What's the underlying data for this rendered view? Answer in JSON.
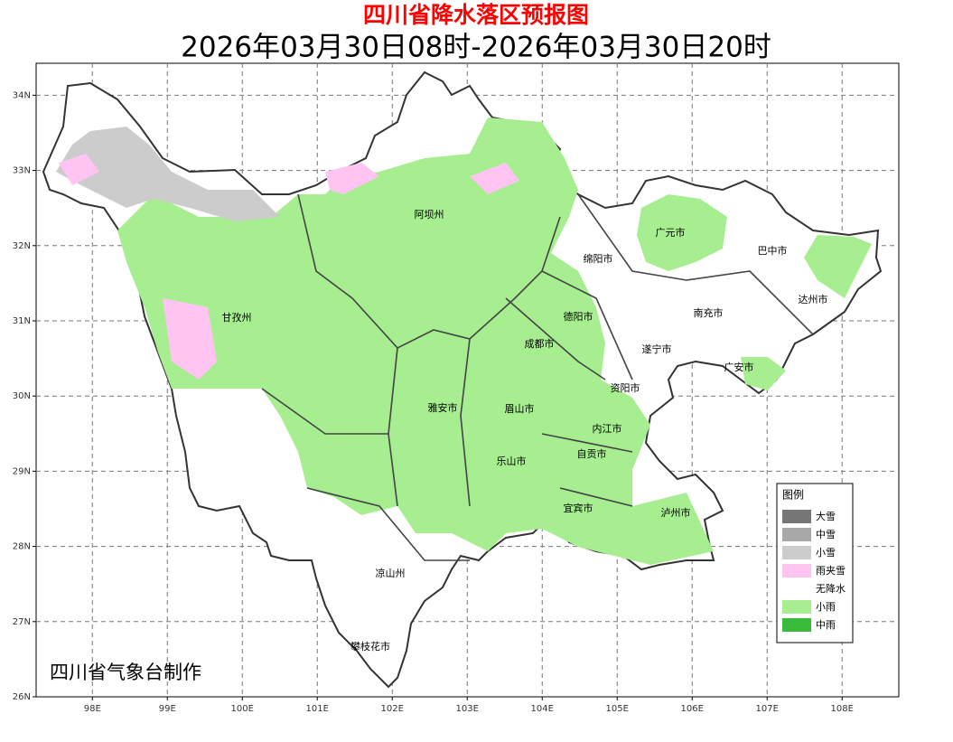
{
  "header": {
    "title": "四川省降水落区预报图",
    "subtitle": "2026年03月30日08时-2026年03月30日20时"
  },
  "map": {
    "lon_ticks": [
      {
        "value": 98,
        "label": "98E"
      },
      {
        "value": 99,
        "label": "99E"
      },
      {
        "value": 100,
        "label": "100E"
      },
      {
        "value": 101,
        "label": "101E"
      },
      {
        "value": 102,
        "label": "102E"
      },
      {
        "value": 103,
        "label": "103E"
      },
      {
        "value": 104,
        "label": "104E"
      },
      {
        "value": 105,
        "label": "105E"
      },
      {
        "value": 106,
        "label": "106E"
      },
      {
        "value": 107,
        "label": "107E"
      },
      {
        "value": 108,
        "label": "108E"
      }
    ],
    "lat_ticks": [
      {
        "value": 34,
        "label": "34N"
      },
      {
        "value": 33,
        "label": "33N"
      },
      {
        "value": 32,
        "label": "32N"
      },
      {
        "value": 31,
        "label": "31N"
      },
      {
        "value": 30,
        "label": "30N"
      },
      {
        "value": 29,
        "label": "29N"
      },
      {
        "value": 28,
        "label": "28N"
      },
      {
        "value": 27,
        "label": "27N"
      },
      {
        "value": 26,
        "label": "26N"
      }
    ],
    "cities": [
      "阿坝州",
      "广元市",
      "绵阳市",
      "巴中市",
      "达州市",
      "德阳市",
      "甘孜州",
      "南充市",
      "成都市",
      "遂宁市",
      "广安市",
      "资阳市",
      "雅安市",
      "眉山市",
      "内江市",
      "自贡市",
      "乐山市",
      "宜宾市",
      "泸州市",
      "凉山州",
      "攀枝花市"
    ],
    "credit": "四川省气象台制作"
  },
  "legend": {
    "title": "图例",
    "items": [
      {
        "label": "大雪",
        "color": "#777777"
      },
      {
        "label": "中雪",
        "color": "#a8a8a8"
      },
      {
        "label": "小雪",
        "color": "#cccccc"
      },
      {
        "label": "雨夹雪",
        "color": "#ffc4f2"
      },
      {
        "label": "无降水",
        "color": "#ffffff"
      },
      {
        "label": "小雨",
        "color": "#a6ee90"
      },
      {
        "label": "中雨",
        "color": "#3cba3c"
      }
    ]
  }
}
